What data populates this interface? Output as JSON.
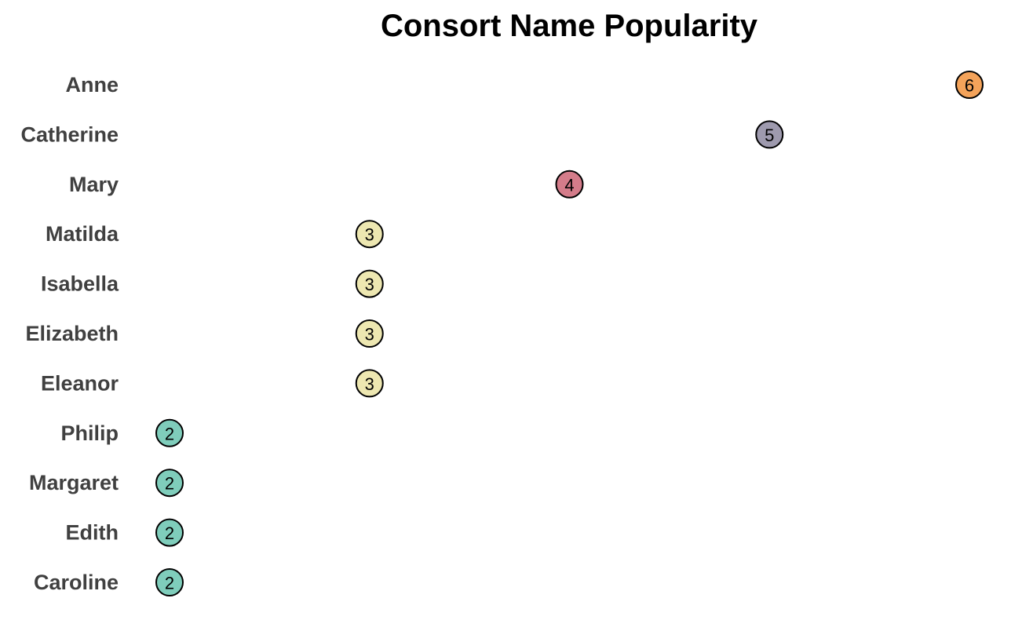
{
  "chart_data": {
    "type": "dot",
    "title": "Consort Name Popularity",
    "xlabel": "",
    "ylabel": "",
    "xlim": [
      2,
      6
    ],
    "grid": false,
    "legend": "none",
    "categories": [
      "Anne",
      "Catherine",
      "Mary",
      "Matilda",
      "Isabella",
      "Elizabeth",
      "Eleanor",
      "Philip",
      "Margaret",
      "Edith",
      "Caroline"
    ],
    "values": [
      6,
      5,
      4,
      3,
      3,
      3,
      3,
      2,
      2,
      2,
      2
    ],
    "value_colors": {
      "2": "#7fcdbb",
      "3": "#ede7b1",
      "4": "#d47c8a",
      "5": "#9e9aae",
      "6": "#f4a35a"
    }
  }
}
